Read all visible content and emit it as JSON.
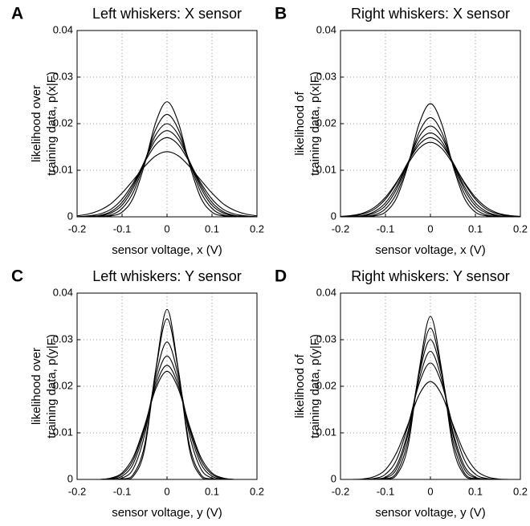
{
  "chart_data": [
    {
      "type": "line",
      "panel_label": "A",
      "title": "Left whiskers: X sensor",
      "xlabel": "sensor voltage, x (V)",
      "ylabel": [
        "likelihood over",
        "training data, p(x|F)"
      ],
      "color": "#000000",
      "grid": true,
      "xlim": [
        -0.2,
        0.2
      ],
      "ylim": [
        0,
        0.04
      ],
      "xticks": [
        -0.2,
        -0.1,
        0,
        0.1,
        0.2
      ],
      "yticks": [
        0,
        0.01,
        0.02,
        0.03,
        0.04
      ],
      "x": [
        -0.2,
        -0.175,
        -0.15,
        -0.125,
        -0.1,
        -0.075,
        -0.05,
        -0.025,
        0,
        0.025,
        0.05,
        0.075,
        0.1,
        0.125,
        0.15,
        0.175,
        0.2
      ],
      "series": [
        {
          "values": [
            0,
            0,
            0,
            0.0002,
            0.001,
            0.0041,
            0.0112,
            0.0203,
            0.0247,
            0.0203,
            0.0112,
            0.0041,
            0.001,
            0.0002,
            0,
            0,
            0
          ]
        },
        {
          "values": [
            0,
            0,
            0.0001,
            0.0004,
            0.0018,
            0.0053,
            0.0117,
            0.0188,
            0.022,
            0.0188,
            0.0117,
            0.0053,
            0.0018,
            0.0004,
            0.0001,
            0,
            0
          ]
        },
        {
          "values": [
            0,
            0,
            0.0002,
            0.0008,
            0.0025,
            0.0062,
            0.0119,
            0.0176,
            0.02,
            0.0176,
            0.0119,
            0.0062,
            0.0025,
            0.0008,
            0.0002,
            0,
            0
          ]
        },
        {
          "values": [
            0,
            0.0001,
            0.0003,
            0.0011,
            0.0031,
            0.0068,
            0.0119,
            0.0166,
            0.0185,
            0.0166,
            0.0119,
            0.0068,
            0.0031,
            0.0011,
            0.0003,
            0.0001,
            0
          ]
        },
        {
          "values": [
            0,
            0.0002,
            0.0006,
            0.0016,
            0.0038,
            0.0073,
            0.0117,
            0.0155,
            0.017,
            0.0155,
            0.0117,
            0.0073,
            0.0038,
            0.0016,
            0.0006,
            0.0002,
            0
          ]
        },
        {
          "values": [
            0.0002,
            0.0006,
            0.0014,
            0.0028,
            0.0051,
            0.0079,
            0.0108,
            0.0131,
            0.014,
            0.0131,
            0.0108,
            0.0079,
            0.0051,
            0.0028,
            0.0014,
            0.0006,
            0.0002
          ]
        }
      ]
    },
    {
      "type": "line",
      "panel_label": "B",
      "title": "Right whiskers: X sensor",
      "xlabel": "sensor voltage, x (V)",
      "ylabel": [
        "likelihood of",
        "training data, p(x|F)"
      ],
      "color": "#000000",
      "grid": true,
      "xlim": [
        -0.2,
        0.2
      ],
      "ylim": [
        0,
        0.04
      ],
      "xticks": [
        -0.2,
        -0.1,
        0,
        0.1,
        0.2
      ],
      "yticks": [
        0,
        0.01,
        0.02,
        0.03,
        0.04
      ],
      "x": [
        -0.2,
        -0.175,
        -0.15,
        -0.125,
        -0.1,
        -0.075,
        -0.05,
        -0.025,
        0,
        0.025,
        0.05,
        0.075,
        0.1,
        0.125,
        0.15,
        0.175,
        0.2
      ],
      "series": [
        {
          "values": [
            0,
            0,
            0,
            0.0002,
            0.001,
            0.0041,
            0.011,
            0.02,
            0.0243,
            0.02,
            0.011,
            0.0041,
            0.001,
            0.0002,
            0,
            0,
            0
          ]
        },
        {
          "values": [
            0,
            0,
            0.0001,
            0.0004,
            0.0017,
            0.0051,
            0.0113,
            0.0182,
            0.0213,
            0.0182,
            0.0113,
            0.0051,
            0.0017,
            0.0004,
            0.0001,
            0,
            0
          ]
        },
        {
          "values": [
            0,
            0,
            0.0002,
            0.0008,
            0.0024,
            0.006,
            0.0116,
            0.0172,
            0.0195,
            0.0172,
            0.0116,
            0.006,
            0.0024,
            0.0008,
            0.0002,
            0,
            0
          ]
        },
        {
          "values": [
            0,
            0.0001,
            0.0003,
            0.0011,
            0.003,
            0.0066,
            0.0116,
            0.0162,
            0.018,
            0.0162,
            0.0116,
            0.0066,
            0.003,
            0.0011,
            0.0003,
            0.0001,
            0
          ]
        },
        {
          "values": [
            0,
            0.0002,
            0.0006,
            0.0016,
            0.0038,
            0.0073,
            0.0117,
            0.0155,
            0.017,
            0.0155,
            0.0117,
            0.0073,
            0.0038,
            0.0016,
            0.0006,
            0.0002,
            0
          ]
        },
        {
          "values": [
            0.0001,
            0.0003,
            0.0008,
            0.002,
            0.0042,
            0.0075,
            0.0114,
            0.0147,
            0.016,
            0.0147,
            0.0114,
            0.0075,
            0.0042,
            0.002,
            0.0008,
            0.0003,
            0.0001
          ]
        }
      ]
    },
    {
      "type": "line",
      "panel_label": "C",
      "title": "Left whiskers: Y sensor",
      "xlabel": "sensor voltage, y (V)",
      "ylabel": [
        "likelihood over",
        "training data, p(y|F)"
      ],
      "color": "#000000",
      "grid": true,
      "xlim": [
        -0.2,
        0.2
      ],
      "ylim": [
        0,
        0.04
      ],
      "xticks": [
        -0.2,
        -0.1,
        0,
        0.1,
        0.2
      ],
      "yticks": [
        0,
        0.01,
        0.02,
        0.03,
        0.04
      ],
      "x": [
        -0.2,
        -0.175,
        -0.15,
        -0.125,
        -0.1,
        -0.075,
        -0.05,
        -0.025,
        0,
        0.025,
        0.05,
        0.075,
        0.1,
        0.125,
        0.15,
        0.175,
        0.2
      ],
      "series": [
        {
          "values": [
            0,
            0,
            0,
            0,
            0,
            0.0007,
            0.0064,
            0.0236,
            0.0365,
            0.0236,
            0.0064,
            0.0007,
            0,
            0,
            0,
            0,
            0
          ]
        },
        {
          "values": [
            0,
            0,
            0,
            0,
            0.0001,
            0.0011,
            0.0073,
            0.0234,
            0.0345,
            0.0234,
            0.0073,
            0.0011,
            0.0001,
            0,
            0,
            0,
            0
          ]
        },
        {
          "values": [
            0,
            0,
            0,
            0,
            0.0003,
            0.0023,
            0.0095,
            0.0222,
            0.0295,
            0.0222,
            0.0095,
            0.0023,
            0.0003,
            0,
            0,
            0,
            0
          ]
        },
        {
          "values": [
            0,
            0,
            0,
            0.0001,
            0.0007,
            0.0034,
            0.0106,
            0.0211,
            0.0265,
            0.0211,
            0.0106,
            0.0034,
            0.0007,
            0.0001,
            0,
            0,
            0
          ]
        },
        {
          "values": [
            0,
            0,
            0,
            0.0002,
            0.0011,
            0.0042,
            0.0112,
            0.0202,
            0.0245,
            0.0202,
            0.0112,
            0.0042,
            0.0011,
            0.0002,
            0,
            0,
            0
          ]
        },
        {
          "values": [
            0,
            0,
            0,
            0.0003,
            0.0014,
            0.0048,
            0.0115,
            0.0195,
            0.0232,
            0.0195,
            0.0115,
            0.0048,
            0.0014,
            0.0003,
            0,
            0,
            0
          ]
        }
      ]
    },
    {
      "type": "line",
      "panel_label": "D",
      "title": "Right whiskers: Y sensor",
      "xlabel": "sensor voltage, y (V)",
      "ylabel": [
        "likelihood of",
        "training data, p(y|F)"
      ],
      "color": "#000000",
      "grid": true,
      "xlim": [
        -0.2,
        0.2
      ],
      "ylim": [
        0,
        0.04
      ],
      "xticks": [
        -0.2,
        -0.1,
        0,
        0.1,
        0.2
      ],
      "yticks": [
        0,
        0.01,
        0.02,
        0.03,
        0.04
      ],
      "x": [
        -0.2,
        -0.175,
        -0.15,
        -0.125,
        -0.1,
        -0.075,
        -0.05,
        -0.025,
        0,
        0.025,
        0.05,
        0.075,
        0.1,
        0.125,
        0.15,
        0.175,
        0.2
      ],
      "series": [
        {
          "values": [
            0,
            0,
            0,
            0,
            0.0001,
            0.001,
            0.0071,
            0.0235,
            0.035,
            0.0235,
            0.0071,
            0.001,
            0.0001,
            0,
            0,
            0,
            0
          ]
        },
        {
          "values": [
            0,
            0,
            0,
            0,
            0.0001,
            0.0015,
            0.0083,
            0.0231,
            0.0325,
            0.0231,
            0.0083,
            0.0015,
            0.0001,
            0,
            0,
            0,
            0
          ]
        },
        {
          "values": [
            0,
            0,
            0,
            0,
            0.0003,
            0.0023,
            0.0096,
            0.0226,
            0.03,
            0.0226,
            0.0096,
            0.0023,
            0.0003,
            0,
            0,
            0,
            0
          ]
        },
        {
          "values": [
            0,
            0,
            0,
            0.0001,
            0.0005,
            0.003,
            0.0103,
            0.0215,
            0.0275,
            0.0215,
            0.0103,
            0.003,
            0.0005,
            0.0001,
            0,
            0,
            0
          ]
        },
        {
          "values": [
            0,
            0,
            0,
            0.0002,
            0.0011,
            0.0043,
            0.0115,
            0.0206,
            0.025,
            0.0206,
            0.0115,
            0.0043,
            0.0011,
            0.0002,
            0,
            0,
            0
          ]
        },
        {
          "values": [
            0,
            0,
            0.0001,
            0.0006,
            0.0021,
            0.0058,
            0.0118,
            0.0182,
            0.021,
            0.0182,
            0.0118,
            0.0058,
            0.0021,
            0.0006,
            0.0001,
            0,
            0
          ]
        }
      ]
    }
  ]
}
